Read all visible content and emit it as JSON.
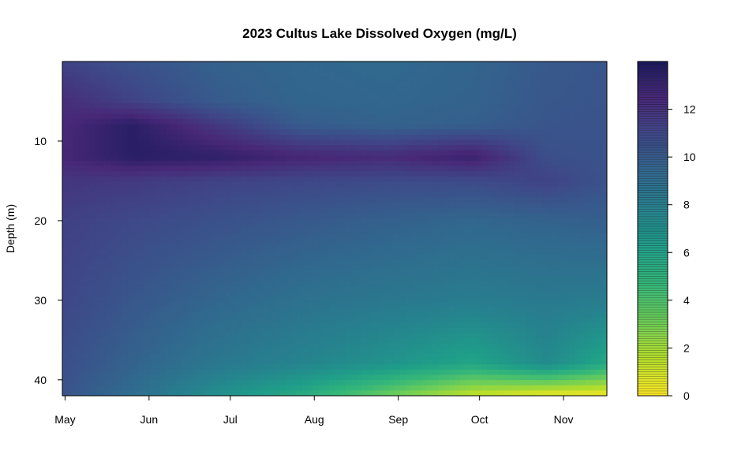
{
  "chart_data": {
    "type": "heatmap",
    "title": "2023 Cultus Lake Dissolved Oxygen (mg/L)",
    "xlabel": "",
    "ylabel": "Depth (m)",
    "x_ticks": [
      "May",
      "Jun",
      "Jul",
      "Aug",
      "Sep",
      "Oct",
      "Nov"
    ],
    "x_range": [
      "2023-04-30",
      "2023-11-17"
    ],
    "y_ticks": [
      10,
      20,
      30,
      40
    ],
    "y_range": [
      0,
      42
    ],
    "y_reversed": true,
    "color_scale": {
      "min": 0,
      "max": 14,
      "ticks": [
        0,
        2,
        4,
        6,
        8,
        10,
        12
      ],
      "colors": [
        "#fde725",
        "#b5de2b",
        "#6ece58",
        "#35b779",
        "#1f9e89",
        "#26828e",
        "#31688e",
        "#3e4989",
        "#482878",
        "#1a1a5e"
      ]
    },
    "grid": false,
    "profiles": [
      {
        "date": "2023-04-30",
        "depths": [
          0,
          5,
          8,
          12,
          15,
          20,
          30,
          38,
          42
        ],
        "values": [
          11.2,
          12.2,
          12.4,
          12.5,
          11.8,
          11.3,
          11.0,
          10.6,
          10.4
        ]
      },
      {
        "date": "2023-05-26",
        "depths": [
          0,
          5,
          8,
          12,
          15,
          20,
          30,
          38,
          42
        ],
        "values": [
          10.4,
          11.2,
          13.5,
          13.5,
          11.6,
          10.9,
          10.2,
          9.6,
          9.0
        ]
      },
      {
        "date": "2023-06-26",
        "depths": [
          0,
          5,
          8,
          12,
          15,
          20,
          30,
          38,
          42
        ],
        "values": [
          9.7,
          10.0,
          11.7,
          13.3,
          11.2,
          10.5,
          9.4,
          8.4,
          7.0
        ]
      },
      {
        "date": "2023-07-26",
        "depths": [
          0,
          5,
          8,
          12,
          15,
          20,
          30,
          38,
          42
        ],
        "values": [
          9.4,
          9.5,
          10.0,
          12.6,
          11.0,
          10.1,
          8.8,
          7.7,
          5.5
        ]
      },
      {
        "date": "2023-08-28",
        "depths": [
          0,
          5,
          8,
          12,
          15,
          20,
          30,
          38,
          42
        ],
        "values": [
          9.3,
          9.4,
          9.6,
          12.3,
          10.8,
          9.7,
          8.4,
          6.8,
          3.2
        ]
      },
      {
        "date": "2023-09-28",
        "depths": [
          0,
          5,
          8,
          12,
          15,
          20,
          30,
          38,
          42
        ],
        "values": [
          9.5,
          9.6,
          9.8,
          13.0,
          10.8,
          9.4,
          8.1,
          5.8,
          1.2
        ]
      },
      {
        "date": "2023-10-26",
        "depths": [
          0,
          5,
          8,
          12,
          15,
          20,
          30,
          38,
          42
        ],
        "values": [
          10.1,
          10.2,
          10.3,
          10.6,
          11.2,
          9.6,
          8.3,
          7.3,
          0.3
        ]
      },
      {
        "date": "2023-11-17",
        "depths": [
          0,
          5,
          8,
          12,
          15,
          20,
          30,
          38,
          42
        ],
        "values": [
          10.3,
          10.3,
          10.4,
          10.4,
          10.4,
          9.8,
          8.1,
          5.6,
          0.2
        ]
      }
    ]
  }
}
